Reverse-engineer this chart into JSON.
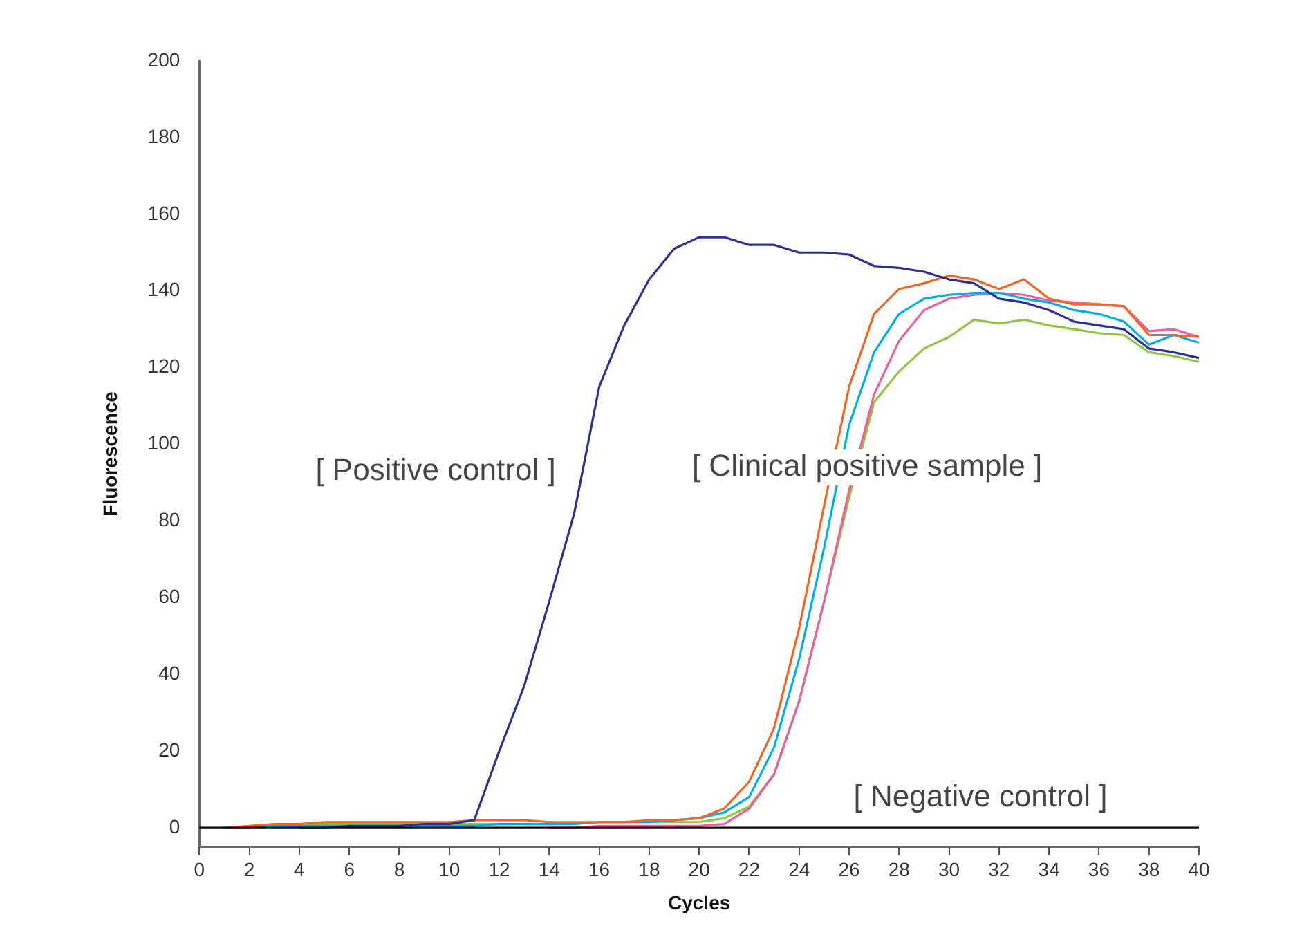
{
  "chart_data": {
    "type": "line",
    "xlabel": "Cycles",
    "ylabel": "Fluorescence",
    "xlim": [
      0,
      40
    ],
    "ylim": [
      -5,
      200
    ],
    "xticks": [
      0,
      2,
      4,
      6,
      8,
      10,
      12,
      14,
      16,
      18,
      20,
      22,
      24,
      26,
      28,
      30,
      32,
      34,
      36,
      38,
      40
    ],
    "yticks": [
      0,
      20,
      40,
      60,
      80,
      100,
      120,
      140,
      160,
      180,
      200
    ],
    "grid": false,
    "legend": false,
    "marker": "none",
    "line_style": "solid",
    "annotations": [
      "[ Positive control ]",
      "[ Clinical positive sample ]",
      "[ Negative control ]"
    ],
    "series": [
      {
        "color": "#000000",
        "x": [
          0,
          40
        ],
        "values": [
          0,
          0
        ]
      },
      {
        "color": "#2e3192",
        "x": [
          4,
          5,
          6,
          7,
          8,
          9,
          10,
          11,
          12,
          13,
          14,
          15,
          16,
          17,
          18,
          19,
          20,
          21,
          22,
          23,
          24,
          25,
          26,
          27,
          28,
          29,
          30,
          31,
          32,
          33,
          34,
          35,
          36,
          37,
          38,
          39,
          40
        ],
        "values": [
          0,
          0,
          0.5,
          0.5,
          0.5,
          1,
          1,
          2,
          20,
          37,
          59,
          82,
          115,
          131,
          143,
          151,
          154,
          154,
          152,
          152,
          150,
          150,
          149.5,
          146.5,
          146,
          145,
          143,
          142,
          138,
          137,
          135,
          132,
          131,
          130,
          125,
          124,
          122.5
        ]
      },
      {
        "color": "#f26522",
        "x": [
          1,
          2,
          3,
          4,
          5,
          6,
          7,
          8,
          9,
          10,
          11,
          12,
          13,
          14,
          15,
          16,
          17,
          18,
          19,
          20,
          21,
          22,
          23,
          24,
          25,
          26,
          27,
          28,
          29,
          30,
          31,
          32,
          33,
          34,
          35,
          36,
          37,
          38,
          39,
          40
        ],
        "values": [
          0,
          0.5,
          1,
          1,
          1.5,
          1.5,
          1.5,
          1.5,
          1.5,
          1.5,
          2,
          2,
          2,
          1.5,
          1.5,
          1.5,
          1.5,
          2,
          2,
          2.5,
          5,
          12,
          26,
          52,
          84,
          115,
          134,
          140.5,
          142,
          144,
          143,
          140.5,
          143,
          138,
          136.5,
          136.5,
          136,
          128.5,
          128.5,
          128
        ]
      },
      {
        "color": "#00aeef",
        "x": [
          1,
          2,
          3,
          4,
          5,
          6,
          7,
          8,
          9,
          10,
          11,
          12,
          13,
          14,
          15,
          16,
          17,
          18,
          19,
          20,
          21,
          22,
          23,
          24,
          25,
          26,
          27,
          28,
          29,
          30,
          31,
          32,
          33,
          34,
          35,
          36,
          37,
          38,
          39,
          40
        ],
        "values": [
          0,
          0,
          0.5,
          0.5,
          0.5,
          0.5,
          0.5,
          0.5,
          0.5,
          0.5,
          0.5,
          1,
          1,
          1,
          1,
          1.5,
          1.5,
          1.5,
          2,
          2.5,
          4,
          8,
          21,
          44,
          73,
          105,
          124,
          134,
          138,
          139,
          139.5,
          139.5,
          138,
          137,
          135,
          134,
          132,
          126,
          128.5,
          126.5
        ]
      },
      {
        "color": "#ec5fa0",
        "x": [
          14,
          15,
          16,
          17,
          18,
          19,
          20,
          21,
          22,
          23,
          24,
          25,
          26,
          27,
          28,
          29,
          30,
          31,
          32,
          33,
          34,
          35,
          36,
          37,
          38,
          39,
          40
        ],
        "values": [
          0,
          0,
          0.5,
          0.5,
          0.5,
          0.5,
          0.5,
          1,
          5,
          14,
          33,
          59,
          88,
          113,
          127,
          135,
          138,
          139,
          139.5,
          139,
          137.5,
          137,
          136.5,
          136,
          129.5,
          130,
          128
        ]
      },
      {
        "color": "#8dc63f",
        "x": [
          3,
          4,
          5,
          6,
          7,
          8,
          9,
          10,
          11,
          12,
          13,
          14,
          15,
          16,
          17,
          18,
          19,
          20,
          21,
          22,
          23,
          24,
          25,
          26,
          27,
          28,
          29,
          30,
          31,
          32,
          33,
          34,
          35,
          36,
          37,
          38,
          39,
          40
        ],
        "values": [
          1,
          1,
          1,
          1,
          1,
          1,
          1,
          1,
          1,
          1,
          1,
          1,
          1,
          1.5,
          1.5,
          1.5,
          1.5,
          1.5,
          2.5,
          5.5,
          14,
          33,
          59,
          86,
          111,
          119,
          125,
          128,
          132.5,
          131.5,
          132.5,
          131,
          130,
          129,
          128.5,
          124,
          123,
          121.5
        ]
      }
    ]
  }
}
